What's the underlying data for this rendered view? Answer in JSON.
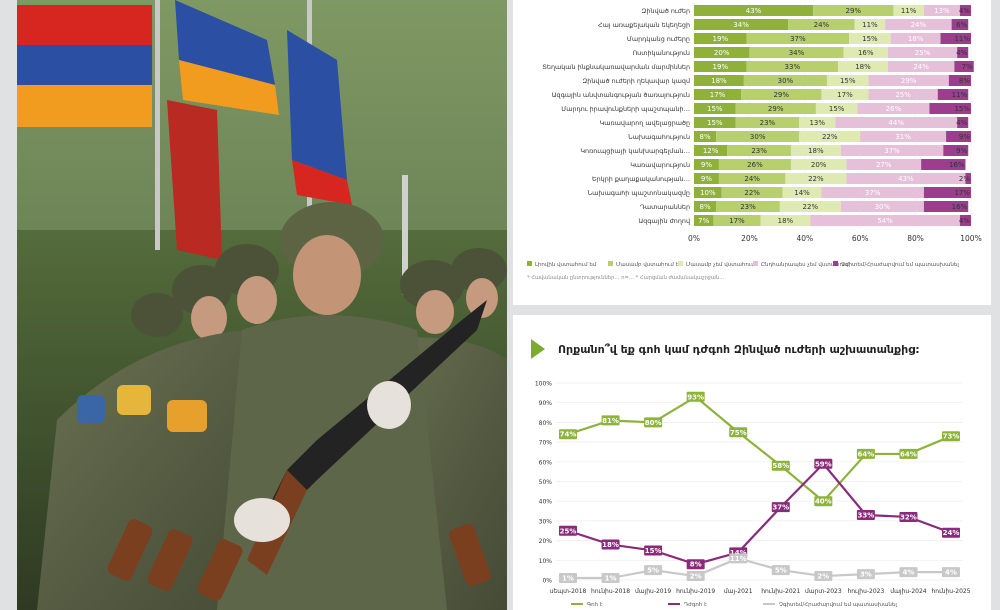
{
  "colors": {
    "olive_dark": "#8fb13a",
    "olive_mid": "#b7cf6c",
    "olive_light": "#dfeab3",
    "pink_light": "#e6bfd9",
    "purple": "#9c3d8e",
    "grey": "#cfcfcf",
    "line_green": "#8db33b",
    "line_purple": "#8a2a7a",
    "line_grey": "#c8c8c8",
    "arrow": "#7cab2e"
  },
  "photo": {
    "subject": "armenian-soldiers-parade",
    "flag_colors": [
      "#d6261f",
      "#2b4fa3",
      "#f29c1f"
    ]
  },
  "chart_data": [
    {
      "type": "bar",
      "stacked": true,
      "orientation": "horizontal",
      "categories": [
        "Զինված ուժեր",
        "Հայ առաքելական եկեղեցի",
        "Մարդկանց ուժերը",
        "Ոստիկանություն",
        "Տեղական ինքնակառավարման մարմիններ",
        "Զինված ուժերի ղեկավար կազմ",
        "Ազգային անվտանգության ծառայություն",
        "Մարդու իրավունքների պաշտպանի…",
        "Կառավարող ավելացրածը",
        "Նախագահություն",
        "Կոռուպցիայի կանխարգելման…",
        "Կառավարություն",
        "Երկրի քաղաքականության…",
        "Նախագահի պաշտոնակազմը",
        "Դատարաններ",
        "Ազգային ժողով"
      ],
      "series": [
        {
          "values": [
            43,
            34,
            19,
            20,
            19,
            18,
            17,
            15,
            15,
            8,
            12,
            9,
            9,
            10,
            8,
            7
          ]
        },
        {
          "values": [
            29,
            24,
            37,
            34,
            33,
            30,
            29,
            29,
            23,
            30,
            23,
            26,
            24,
            22,
            23,
            17
          ]
        },
        {
          "values": [
            11,
            11,
            15,
            16,
            18,
            15,
            17,
            15,
            13,
            22,
            18,
            20,
            22,
            14,
            22,
            18
          ]
        },
        {
          "values": [
            13,
            24,
            18,
            25,
            24,
            29,
            25,
            26,
            44,
            31,
            37,
            27,
            43,
            37,
            30,
            54
          ]
        },
        {
          "values": [
            4,
            6,
            11,
            4,
            7,
            8,
            11,
            15,
            4,
            9,
            9,
            16,
            2,
            17,
            16,
            4
          ]
        }
      ],
      "xlim": [
        0,
        100
      ],
      "xticks": [
        "0%",
        "20%",
        "40%",
        "60%",
        "80%",
        "100%"
      ],
      "legend": [
        "Լիովին վստահում եմ",
        "Մասամբ վստահում եմ",
        "Մասամբ չեմ վստահում",
        "Ընդհանրապես չեմ վստահում",
        "Չգիտեմ/Հրաժարվում եմ պատասխանել"
      ],
      "note": "* Հավանական ընտրություններ… n=… * Հարցման ժամանակաշրջան…"
    },
    {
      "type": "line",
      "title": "Որքանո՞վ եք գոհ կամ դժգոհ Զինված ուժերի աշխատանքից:",
      "x": [
        "սեպտ-2018",
        "հունիս-2018",
        "մայիս-2019",
        "հունիս-2019",
        "մայ-2021",
        "հունիս-2021",
        "մարտ-2023",
        "հուլիս-2023",
        "մայիս-2024",
        "հունիս-2025"
      ],
      "ylim": [
        0,
        100
      ],
      "yticks": [
        "0%",
        "10%",
        "20%",
        "30%",
        "40%",
        "50%",
        "60%",
        "70%",
        "80%",
        "90%",
        "100%"
      ],
      "series": [
        {
          "name": "Գոհ է",
          "values": [
            74,
            81,
            80,
            93,
            75,
            58,
            40,
            64,
            64,
            73
          ]
        },
        {
          "name": "Դժգոհ է",
          "values": [
            25,
            18,
            15,
            8,
            14,
            37,
            59,
            33,
            32,
            24
          ]
        },
        {
          "name": "Չգիտեմ/Հրաժարվում եմ պատասխանել",
          "values": [
            1,
            1,
            5,
            2,
            11,
            5,
            2,
            3,
            4,
            4
          ]
        }
      ],
      "legend_position": "bottom"
    }
  ]
}
